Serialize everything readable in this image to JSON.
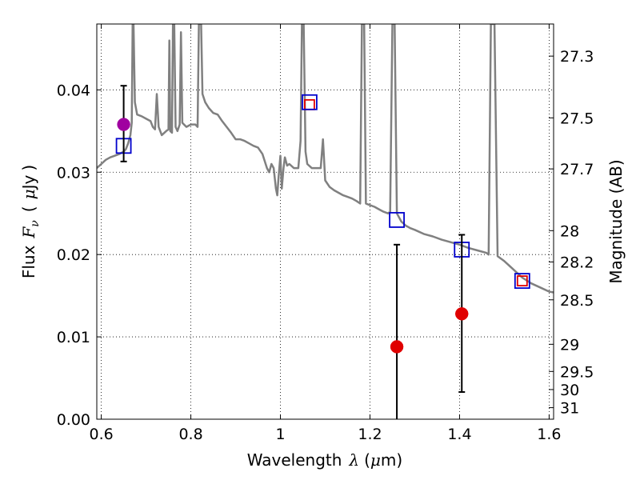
{
  "chart_data": {
    "type": "scatter",
    "title": "",
    "xlabel": {
      "main": "Wavelength",
      "lambda": "λ",
      "unit_open": "(",
      "mu": "μ",
      "unit_rest": "m)"
    },
    "ylabel": {
      "main": "Flux",
      "symbol": "F",
      "subscript": "ν",
      "unit_open": "(",
      "mu": "μ",
      "unit_rest": "Jy",
      "unit_close": ")"
    },
    "y2label": "Magnitude (AB)",
    "xlim": [
      0.59,
      1.61
    ],
    "ylim": [
      0.0,
      0.048
    ],
    "grid": true,
    "x_ticks": [
      {
        "value": 0.6,
        "label": "0.6"
      },
      {
        "value": 0.8,
        "label": "0.8"
      },
      {
        "value": 1.0,
        "label": "1"
      },
      {
        "value": 1.2,
        "label": "1.2"
      },
      {
        "value": 1.4,
        "label": "1.4"
      },
      {
        "value": 1.6,
        "label": "1.6"
      }
    ],
    "y_ticks": [
      {
        "value": 0.0,
        "label": "0.00"
      },
      {
        "value": 0.01,
        "label": "0.01"
      },
      {
        "value": 0.02,
        "label": "0.02"
      },
      {
        "value": 0.03,
        "label": "0.03"
      },
      {
        "value": 0.04,
        "label": "0.04"
      }
    ],
    "y2_ticks": [
      {
        "label": "27.3",
        "flux": 0.0441
      },
      {
        "label": "27.5",
        "flux": 0.0366
      },
      {
        "label": "27.7",
        "flux": 0.0304
      },
      {
        "label": "28",
        "flux": 0.0229
      },
      {
        "label": "28.2",
        "flux": 0.0191
      },
      {
        "label": "28.5",
        "flux": 0.0145
      },
      {
        "label": "29",
        "flux": 0.0091
      },
      {
        "label": "29.5",
        "flux": 0.0058
      },
      {
        "label": "30",
        "flux": 0.0036
      },
      {
        "label": "31",
        "flux": 0.0014
      }
    ],
    "series": [
      {
        "style": "line",
        "color": "#808080",
        "points": [
          [
            0.59,
            0.0305
          ],
          [
            0.6,
            0.031
          ],
          [
            0.61,
            0.0315
          ],
          [
            0.62,
            0.0318
          ],
          [
            0.63,
            0.032
          ],
          [
            0.64,
            0.0322
          ],
          [
            0.65,
            0.0325
          ],
          [
            0.655,
            0.0328
          ],
          [
            0.66,
            0.0335
          ],
          [
            0.665,
            0.0345
          ],
          [
            0.668,
            0.036
          ],
          [
            0.67,
            0.048
          ],
          [
            0.672,
            0.048
          ],
          [
            0.675,
            0.0385
          ],
          [
            0.68,
            0.037
          ],
          [
            0.69,
            0.0368
          ],
          [
            0.7,
            0.0365
          ],
          [
            0.71,
            0.0362
          ],
          [
            0.715,
            0.0355
          ],
          [
            0.72,
            0.0352
          ],
          [
            0.724,
            0.0395
          ],
          [
            0.728,
            0.0355
          ],
          [
            0.735,
            0.0345
          ],
          [
            0.745,
            0.035
          ],
          [
            0.75,
            0.0352
          ],
          [
            0.752,
            0.046
          ],
          [
            0.754,
            0.035
          ],
          [
            0.758,
            0.0348
          ],
          [
            0.76,
            0.048
          ],
          [
            0.763,
            0.048
          ],
          [
            0.766,
            0.0355
          ],
          [
            0.77,
            0.035
          ],
          [
            0.775,
            0.0358
          ],
          [
            0.778,
            0.047
          ],
          [
            0.781,
            0.036
          ],
          [
            0.79,
            0.0355
          ],
          [
            0.8,
            0.0358
          ],
          [
            0.81,
            0.0358
          ],
          [
            0.815,
            0.0355
          ],
          [
            0.818,
            0.048
          ],
          [
            0.823,
            0.048
          ],
          [
            0.826,
            0.0395
          ],
          [
            0.832,
            0.0385
          ],
          [
            0.84,
            0.0378
          ],
          [
            0.85,
            0.0372
          ],
          [
            0.86,
            0.037
          ],
          [
            0.87,
            0.0362
          ],
          [
            0.88,
            0.0355
          ],
          [
            0.89,
            0.0348
          ],
          [
            0.9,
            0.034
          ],
          [
            0.91,
            0.034
          ],
          [
            0.92,
            0.0338
          ],
          [
            0.93,
            0.0335
          ],
          [
            0.94,
            0.0332
          ],
          [
            0.95,
            0.033
          ],
          [
            0.96,
            0.0322
          ],
          [
            0.97,
            0.0305
          ],
          [
            0.975,
            0.03
          ],
          [
            0.98,
            0.031
          ],
          [
            0.985,
            0.0305
          ],
          [
            0.99,
            0.028
          ],
          [
            0.993,
            0.0272
          ],
          [
            0.996,
            0.0295
          ],
          [
            1.0,
            0.032
          ],
          [
            1.003,
            0.028
          ],
          [
            1.007,
            0.0305
          ],
          [
            1.01,
            0.0318
          ],
          [
            1.015,
            0.0308
          ],
          [
            1.02,
            0.031
          ],
          [
            1.03,
            0.0305
          ],
          [
            1.04,
            0.0305
          ],
          [
            1.045,
            0.0338
          ],
          [
            1.048,
            0.048
          ],
          [
            1.052,
            0.048
          ],
          [
            1.056,
            0.0325
          ],
          [
            1.06,
            0.031
          ],
          [
            1.07,
            0.0305
          ],
          [
            1.08,
            0.0305
          ],
          [
            1.09,
            0.0305
          ],
          [
            1.095,
            0.034
          ],
          [
            1.1,
            0.029
          ],
          [
            1.11,
            0.0282
          ],
          [
            1.12,
            0.0278
          ],
          [
            1.13,
            0.0275
          ],
          [
            1.14,
            0.0272
          ],
          [
            1.15,
            0.027
          ],
          [
            1.16,
            0.0268
          ],
          [
            1.17,
            0.0265
          ],
          [
            1.178,
            0.0262
          ],
          [
            1.182,
            0.048
          ],
          [
            1.187,
            0.048
          ],
          [
            1.191,
            0.0262
          ],
          [
            1.2,
            0.026
          ],
          [
            1.21,
            0.0258
          ],
          [
            1.22,
            0.0255
          ],
          [
            1.23,
            0.0252
          ],
          [
            1.24,
            0.025
          ],
          [
            1.245,
            0.0252
          ],
          [
            1.25,
            0.048
          ],
          [
            1.255,
            0.048
          ],
          [
            1.26,
            0.025
          ],
          [
            1.27,
            0.024
          ],
          [
            1.28,
            0.0235
          ],
          [
            1.29,
            0.0232
          ],
          [
            1.3,
            0.023
          ],
          [
            1.32,
            0.0225
          ],
          [
            1.34,
            0.0222
          ],
          [
            1.36,
            0.0218
          ],
          [
            1.38,
            0.0215
          ],
          [
            1.4,
            0.0212
          ],
          [
            1.42,
            0.0208
          ],
          [
            1.44,
            0.0205
          ],
          [
            1.46,
            0.0202
          ],
          [
            1.465,
            0.02
          ],
          [
            1.47,
            0.048
          ],
          [
            1.478,
            0.048
          ],
          [
            1.485,
            0.0198
          ],
          [
            1.5,
            0.0192
          ],
          [
            1.52,
            0.0182
          ],
          [
            1.54,
            0.0172
          ],
          [
            1.56,
            0.0165
          ],
          [
            1.58,
            0.016
          ],
          [
            1.6,
            0.0155
          ],
          [
            1.61,
            0.0154
          ]
        ]
      },
      {
        "style": "markers",
        "marker": "open-square",
        "color": "#e00000",
        "size": 12,
        "points": [
          [
            1.065,
            0.0382
          ],
          [
            1.54,
            0.0168
          ]
        ]
      },
      {
        "style": "markers",
        "marker": "open-square",
        "color": "#0000cc",
        "size": 18,
        "points": [
          [
            0.65,
            0.0332
          ],
          [
            1.065,
            0.0385
          ],
          [
            1.26,
            0.0242
          ],
          [
            1.405,
            0.0206
          ],
          [
            1.54,
            0.0168
          ]
        ]
      },
      {
        "style": "markers",
        "marker": "filled-circle",
        "color": "#e00000",
        "size": 16,
        "points": [
          [
            1.26,
            0.0088
          ],
          [
            1.405,
            0.0128
          ]
        ],
        "errors": [
          [
            0.0,
            0.0212
          ],
          [
            0.0033,
            0.0224
          ]
        ]
      },
      {
        "style": "markers",
        "marker": "filled-circle",
        "color": "#a000a0",
        "size": 16,
        "points": [
          [
            0.65,
            0.0358
          ]
        ],
        "errors": [
          [
            0.0313,
            0.0405
          ]
        ]
      }
    ]
  }
}
